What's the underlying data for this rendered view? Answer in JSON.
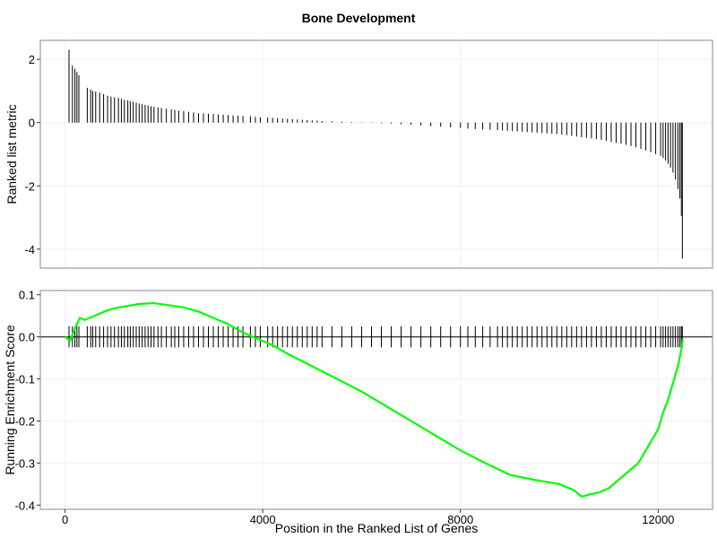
{
  "chart_data": {
    "type": "gsea",
    "title": "Bone Development",
    "xlabel": "Position in the Ranked List of Genes",
    "xlim": [
      -500,
      13100
    ],
    "xticks": [
      0,
      4000,
      8000,
      12000
    ],
    "colors": {
      "running_score": "#00ff00",
      "bars": "#000000",
      "frame": "#888888",
      "grid": "#f0f0f0",
      "zero_line": "#444444"
    },
    "panels": [
      {
        "name": "ranked-metric",
        "ylabel": "Ranked list metric",
        "ylim": [
          -4.6,
          2.6
        ],
        "yticks": [
          2,
          0,
          -2,
          -4
        ],
        "hits": [
          [
            80,
            2.3
          ],
          [
            150,
            1.8
          ],
          [
            200,
            1.7
          ],
          [
            240,
            1.6
          ],
          [
            280,
            1.5
          ],
          [
            450,
            1.1
          ],
          [
            520,
            1.05
          ],
          [
            560,
            1.0
          ],
          [
            620,
            0.98
          ],
          [
            700,
            0.95
          ],
          [
            780,
            0.9
          ],
          [
            860,
            0.85
          ],
          [
            930,
            0.82
          ],
          [
            1000,
            0.8
          ],
          [
            1080,
            0.78
          ],
          [
            1140,
            0.75
          ],
          [
            1200,
            0.72
          ],
          [
            1270,
            0.7
          ],
          [
            1320,
            0.68
          ],
          [
            1380,
            0.66
          ],
          [
            1440,
            0.63
          ],
          [
            1500,
            0.6
          ],
          [
            1560,
            0.58
          ],
          [
            1620,
            0.56
          ],
          [
            1680,
            0.54
          ],
          [
            1740,
            0.52
          ],
          [
            1800,
            0.5
          ],
          [
            1880,
            0.48
          ],
          [
            1950,
            0.46
          ],
          [
            2050,
            0.44
          ],
          [
            2150,
            0.42
          ],
          [
            2220,
            0.4
          ],
          [
            2300,
            0.38
          ],
          [
            2400,
            0.36
          ],
          [
            2500,
            0.34
          ],
          [
            2600,
            0.32
          ],
          [
            2700,
            0.3
          ],
          [
            2800,
            0.29
          ],
          [
            2900,
            0.28
          ],
          [
            3000,
            0.27
          ],
          [
            3100,
            0.26
          ],
          [
            3200,
            0.25
          ],
          [
            3300,
            0.24
          ],
          [
            3400,
            0.23
          ],
          [
            3500,
            0.22
          ],
          [
            3600,
            0.21
          ],
          [
            3750,
            0.2
          ],
          [
            3850,
            0.18
          ],
          [
            3950,
            0.17
          ],
          [
            4100,
            0.16
          ],
          [
            4200,
            0.15
          ],
          [
            4300,
            0.14
          ],
          [
            4400,
            0.13
          ],
          [
            4500,
            0.12
          ],
          [
            4600,
            0.11
          ],
          [
            4700,
            0.1
          ],
          [
            4800,
            0.09
          ],
          [
            4900,
            0.08
          ],
          [
            5000,
            0.07
          ],
          [
            5100,
            0.06
          ],
          [
            5200,
            0.05
          ],
          [
            5400,
            0.04
          ],
          [
            5600,
            0.03
          ],
          [
            5800,
            0.02
          ],
          [
            6000,
            0.01
          ],
          [
            6200,
            -0.01
          ],
          [
            6400,
            -0.02
          ],
          [
            6600,
            -0.03
          ],
          [
            6800,
            -0.05
          ],
          [
            7000,
            -0.07
          ],
          [
            7200,
            -0.09
          ],
          [
            7400,
            -0.11
          ],
          [
            7600,
            -0.13
          ],
          [
            7800,
            -0.15
          ],
          [
            8000,
            -0.17
          ],
          [
            8150,
            -0.19
          ],
          [
            8300,
            -0.2
          ],
          [
            8450,
            -0.22
          ],
          [
            8600,
            -0.23
          ],
          [
            8750,
            -0.24
          ],
          [
            8850,
            -0.25
          ],
          [
            8950,
            -0.26
          ],
          [
            9050,
            -0.27
          ],
          [
            9150,
            -0.28
          ],
          [
            9250,
            -0.29
          ],
          [
            9350,
            -0.3
          ],
          [
            9450,
            -0.31
          ],
          [
            9550,
            -0.32
          ],
          [
            9650,
            -0.33
          ],
          [
            9750,
            -0.34
          ],
          [
            9850,
            -0.35
          ],
          [
            9950,
            -0.36
          ],
          [
            10050,
            -0.38
          ],
          [
            10150,
            -0.4
          ],
          [
            10250,
            -0.42
          ],
          [
            10350,
            -0.44
          ],
          [
            10450,
            -0.46
          ],
          [
            10550,
            -0.48
          ],
          [
            10650,
            -0.5
          ],
          [
            10750,
            -0.52
          ],
          [
            10850,
            -0.55
          ],
          [
            10950,
            -0.58
          ],
          [
            11050,
            -0.61
          ],
          [
            11150,
            -0.64
          ],
          [
            11250,
            -0.67
          ],
          [
            11350,
            -0.7
          ],
          [
            11450,
            -0.74
          ],
          [
            11550,
            -0.78
          ],
          [
            11650,
            -0.83
          ],
          [
            11750,
            -0.88
          ],
          [
            11850,
            -0.93
          ],
          [
            11950,
            -0.99
          ],
          [
            12050,
            -1.05
          ],
          [
            12100,
            -1.12
          ],
          [
            12150,
            -1.2
          ],
          [
            12200,
            -1.3
          ],
          [
            12250,
            -1.42
          ],
          [
            12300,
            -1.58
          ],
          [
            12350,
            -1.8
          ],
          [
            12400,
            -2.1
          ],
          [
            12440,
            -2.4
          ],
          [
            12470,
            -2.95
          ],
          [
            12490,
            -4.3
          ]
        ]
      },
      {
        "name": "running-enrichment",
        "ylabel": "Running Enrichment Score",
        "ylim": [
          -0.41,
          0.11
        ],
        "yticks": [
          0.1,
          0.0,
          -0.1,
          -0.2,
          -0.3,
          -0.4
        ],
        "ytick_labels": [
          "0.1",
          "0.0",
          "-0.1",
          "-0.2",
          "-0.3",
          "-0.4"
        ],
        "hit_tick_range": [
          -0.025,
          0.025
        ],
        "running_score": {
          "x": [
            0,
            100,
            200,
            300,
            400,
            600,
            800,
            1000,
            1200,
            1500,
            1800,
            2100,
            2400,
            2700,
            3000,
            3300,
            3600,
            3900,
            4200,
            4500,
            5000,
            5500,
            6000,
            6500,
            7000,
            7500,
            8000,
            8500,
            9000,
            9500,
            10000,
            10300,
            10450,
            10600,
            10800,
            11000,
            11200,
            11400,
            11600,
            11800,
            12000,
            12100,
            12200,
            12300,
            12400,
            12470,
            12500
          ],
          "y": [
            0.0,
            -0.01,
            0.02,
            0.045,
            0.04,
            0.05,
            0.06,
            0.068,
            0.072,
            0.078,
            0.08,
            0.075,
            0.07,
            0.06,
            0.045,
            0.03,
            0.01,
            -0.005,
            -0.02,
            -0.04,
            -0.07,
            -0.1,
            -0.13,
            -0.165,
            -0.2,
            -0.235,
            -0.27,
            -0.3,
            -0.328,
            -0.34,
            -0.35,
            -0.365,
            -0.38,
            -0.375,
            -0.37,
            -0.36,
            -0.34,
            -0.32,
            -0.3,
            -0.26,
            -0.22,
            -0.18,
            -0.15,
            -0.11,
            -0.07,
            -0.03,
            -0.005
          ]
        }
      }
    ]
  }
}
